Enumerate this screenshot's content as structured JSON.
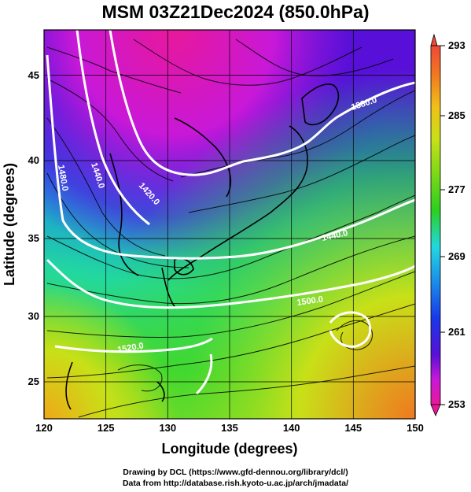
{
  "title": "MSM 03Z21Dec2024 (850.0hPa)",
  "axes": {
    "x_label": "Longitude (degrees)",
    "y_label": "Latitude  (degrees)",
    "x_ticks": [
      "120",
      "125",
      "130",
      "135",
      "140",
      "145",
      "150"
    ],
    "y_ticks": [
      "25",
      "30",
      "35",
      "40",
      "45"
    ],
    "x_range": [
      120,
      150
    ],
    "y_range": [
      22.5,
      47.6
    ]
  },
  "colorbar": {
    "labels": [
      "293",
      "285",
      "277",
      "269",
      "261",
      "253"
    ],
    "range": [
      253,
      293
    ],
    "colors": [
      "#e8189a",
      "#c818d8",
      "#5810d8",
      "#1838e8",
      "#1a8ce8",
      "#22d8e0",
      "#20e080",
      "#2ad020",
      "#7ad818",
      "#c8e018",
      "#f0c018",
      "#f07820",
      "#f04838"
    ]
  },
  "contours": [
    {
      "label": "1380.0"
    },
    {
      "label": "1440.0"
    },
    {
      "label": "1420.0"
    },
    {
      "label": "1480.0"
    },
    {
      "label": "1440.0"
    },
    {
      "label": "1500.0"
    },
    {
      "label": "1520.0"
    }
  ],
  "credits": {
    "line1": "Drawing by DCL (https://www.gfd-dennou.org/library/dcl/)",
    "line2": "Data from http://database.rish.kyoto-u.ac.jp/arch/jmadata/"
  }
}
